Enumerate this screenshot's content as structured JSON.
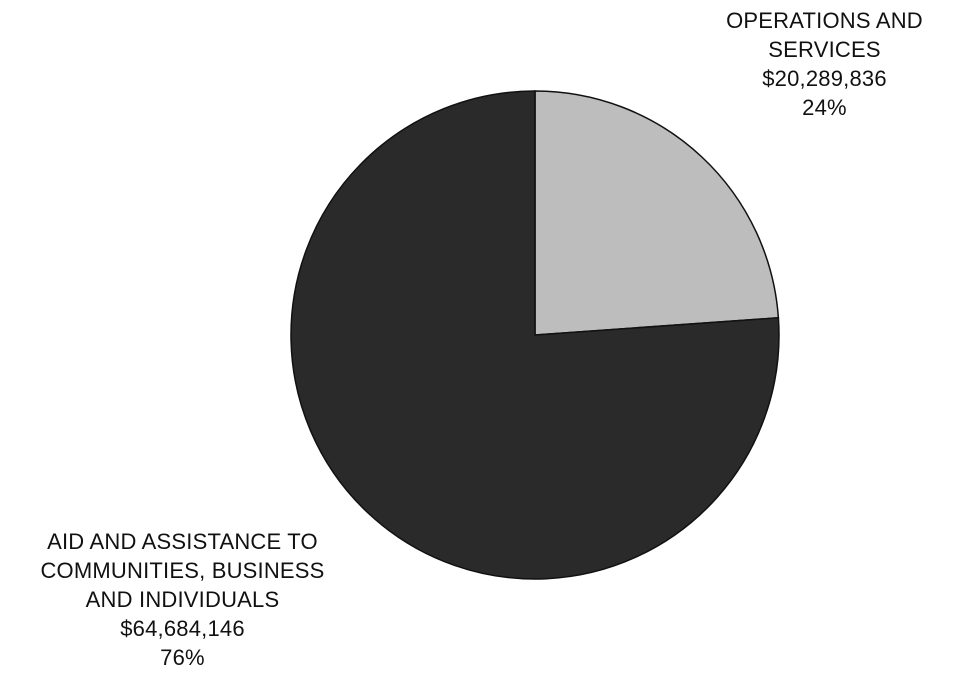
{
  "chart_data": {
    "type": "pie",
    "title": "",
    "slices": [
      {
        "label_lines": [
          "OPERATIONS AND",
          "SERVICES"
        ],
        "amount": "$20,289,836",
        "percent_label": "24%",
        "value": 20289836,
        "color": "#bdbdbd"
      },
      {
        "label_lines": [
          "AID AND ASSISTANCE TO",
          "COMMUNITIES, BUSINESS",
          "AND INDIVIDUALS"
        ],
        "amount": "$64,684,146",
        "percent_label": "76%",
        "value": 64684146,
        "color": "#2a2a2a"
      }
    ]
  }
}
